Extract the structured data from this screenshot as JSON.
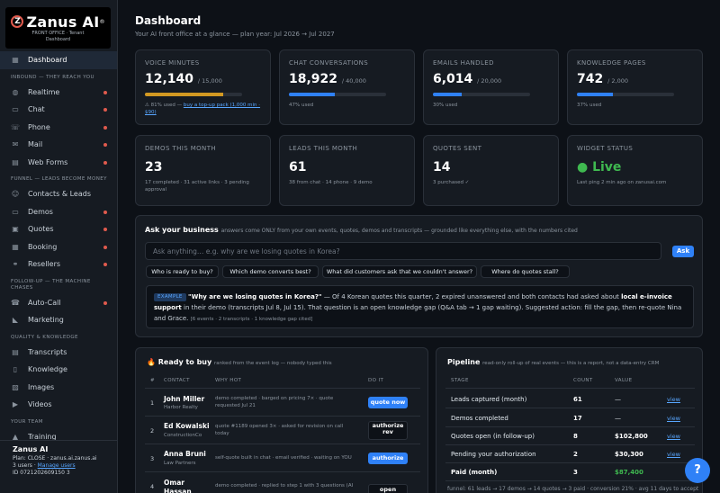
{
  "brand": {
    "name": "Zanus AI",
    "trademark": "®",
    "sub1": "FRONT OFFICE · Tenant",
    "sub2": "Dashboard"
  },
  "nav": {
    "dashboard": "Dashboard",
    "section_inbound": "INBOUND — THEY REACH YOU",
    "realtime": "Realtime",
    "chat": "Chat",
    "phone": "Phone",
    "mail": "Mail",
    "webforms": "Web Forms",
    "section_funnel": "FUNNEL — LEADS BECOME MONEY",
    "contacts": "Contacts & Leads",
    "demos": "Demos",
    "quotes": "Quotes",
    "booking": "Booking",
    "resellers": "Resellers",
    "section_follow": "FOLLOW-UP — THE MACHINE CHASES",
    "autocall": "Auto-Call",
    "marketing": "Marketing",
    "section_quality": "QUALITY & KNOWLEDGE",
    "transcripts": "Transcripts",
    "knowledge": "Knowledge",
    "images": "Images",
    "videos": "Videos",
    "section_team": "YOUR TEAM",
    "training": "Training"
  },
  "account": {
    "name": "Zanus AI",
    "plan": "Plan: CLOSE · zanus.ai.zanus.ai",
    "users": "3 users · ",
    "manage": "Manage users",
    "id": "ID 0721202609150 3"
  },
  "header": {
    "title": "Dashboard",
    "subtitle": "Your AI front office at a glance — plan year: Jul 2026 → Jul 2027"
  },
  "stats": {
    "voice": {
      "label": "VOICE MINUTES",
      "value": "12,140",
      "total": "/ 15,000",
      "pct": 0.81,
      "note": "⚠ 81% used — ",
      "link": "buy a top-up pack (1,000 min · $90)"
    },
    "chat": {
      "label": "CHAT CONVERSATIONS",
      "value": "18,922",
      "total": "/ 40,000",
      "pct": 0.47,
      "note": "47% used"
    },
    "emails": {
      "label": "EMAILS HANDLED",
      "value": "6,014",
      "total": "/ 20,000",
      "pct": 0.3,
      "note": "30% used"
    },
    "knowledge": {
      "label": "KNOWLEDGE PAGES",
      "value": "742",
      "total": "/ 2,000",
      "pct": 0.37,
      "note": "37% used"
    },
    "demos": {
      "label": "DEMOS THIS MONTH",
      "value": "23",
      "note": "17 completed · 31 active links · 3 pending approval"
    },
    "leads": {
      "label": "LEADS THIS MONTH",
      "value": "61",
      "note": "38 from chat · 14 phone · 9 demo"
    },
    "quotes": {
      "label": "QUOTES SENT",
      "value": "14",
      "note": "3 purchased ✓"
    },
    "widget": {
      "label": "WIDGET STATUS",
      "value": "● Live",
      "note": "Last ping 2 min ago on zanusai.com"
    }
  },
  "ask": {
    "title": "Ask your business",
    "hint": "answers come ONLY from your own events, quotes, demos and transcripts — grounded like everything else, with the numbers cited",
    "placeholder": "Ask anything… e.g. why are we losing quotes in Korea?",
    "button": "Ask",
    "chips": [
      "Who is ready to buy?",
      "Which demo converts best?",
      "What did customers ask that we couldn't answer?",
      "Where do quotes stall?"
    ],
    "example_tag": "EXAMPLE",
    "question": "\"Why are we losing quotes in Korea?\"",
    "answer_a": " — Of 4 Korean quotes this quarter, 2 expired unanswered and both contacts had asked about ",
    "answer_b": "local e-invoice support",
    "answer_c": " in their demo (transcripts Jul 8, Jul 15). That question is an open knowledge gap (Q&A tab → 1 gap waiting). Suggested action: fill the gap, then re-quote Nina and Grace. ",
    "answer_meta": "[6 events · 2 transcripts · 1 knowledge gap cited]"
  },
  "ready": {
    "title": "🔥 Ready to buy",
    "hint": "ranked from the event log — nobody typed this",
    "headers": [
      "#",
      "CONTACT",
      "WHY HOT",
      "DO IT"
    ],
    "rows": [
      {
        "n": "1",
        "name": "John Miller",
        "company": "Harbor Realty",
        "why": "demo completed · barged on pricing 7× · quote requested Jul 21",
        "action": "quote now"
      },
      {
        "n": "2",
        "name": "Ed Kowalski",
        "company": "ConstructionCo",
        "why": "quote #1189 opened 3× · asked for revision on call today",
        "action": "authorize rev"
      },
      {
        "n": "3",
        "name": "Anna Bruni",
        "company": "Law Partners",
        "why": "self-quote built in chat · email verified · waiting on YOU",
        "action": "authorize"
      },
      {
        "n": "4",
        "name": "Omar Hassan",
        "company": "",
        "why": "demo completed · replied to step 1 with 3 questions (AI",
        "action": "open thread"
      }
    ]
  },
  "pipeline": {
    "title": "Pipeline",
    "hint": "read-only roll-up of real events — this is a report, not a data-entry CRM",
    "headers": [
      "STAGE",
      "COUNT",
      "VALUE",
      ""
    ],
    "rows": [
      {
        "stage": "Leads captured (month)",
        "count": "61",
        "value": "—",
        "link": "view"
      },
      {
        "stage": "Demos completed",
        "count": "17",
        "value": "—",
        "link": "view"
      },
      {
        "stage": "Quotes open (in follow-up)",
        "count": "8",
        "value": "$102,800",
        "link": "view"
      },
      {
        "stage": "Pending your authorization",
        "count": "2",
        "value": "$30,300",
        "link": "view"
      },
      {
        "stage": "Paid (month)",
        "count": "3",
        "value": "$87,400",
        "link": ""
      }
    ],
    "footer": "funnel: 61 leads → 17 demos → 14 quotes → 3 paid · conversion 21% · avg 11 days to accept"
  },
  "help": "?"
}
